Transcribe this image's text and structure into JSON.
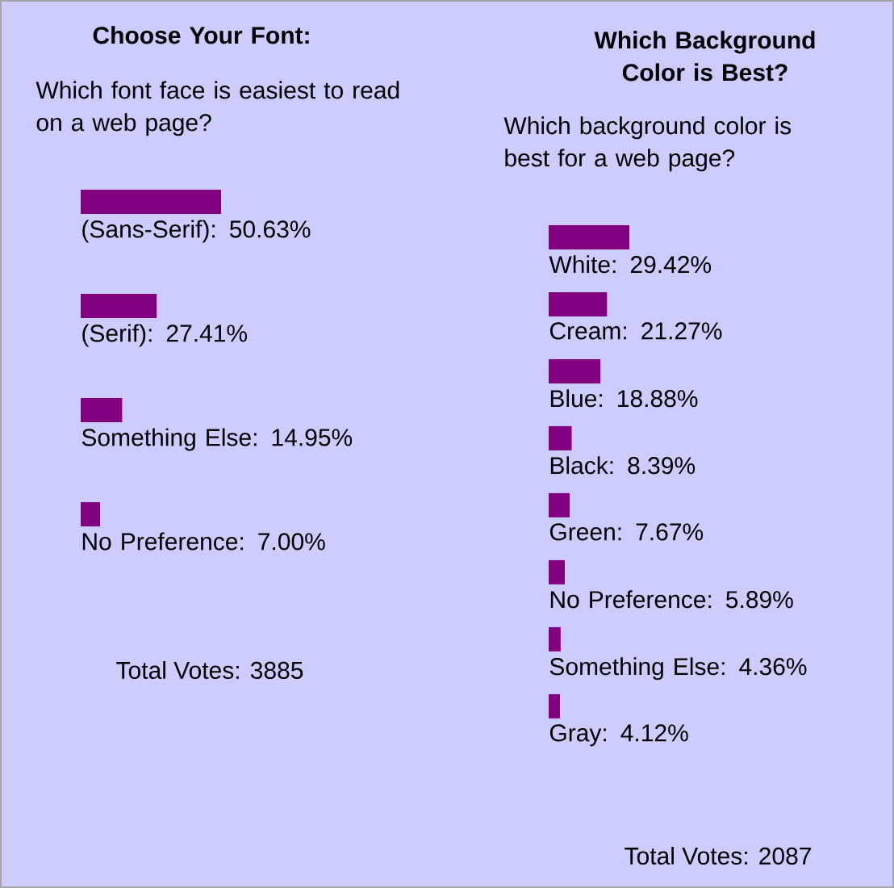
{
  "chart_data": [
    {
      "type": "bar",
      "orientation": "horizontal",
      "title": "Choose Your Font:",
      "subtitle": "Which font face is easiest to read on a web page?",
      "categories": [
        null,
        null,
        null,
        null
      ],
      "values": [
        50.63,
        27.41,
        14.95,
        7.0
      ],
      "value_labels": [
        "(Sans-Serif): 50.63%",
        "(Serif): 27.41%",
        "Something Else: 14.95%",
        "No Preference: 7.00%"
      ],
      "color": "#800080",
      "tick_labels": false,
      "annotations": [
        "Total Votes: 3885"
      ]
    },
    {
      "type": "bar",
      "orientation": "horizontal",
      "title": "Which Background Color is Best?",
      "subtitle": "Which background color is best for a web page?",
      "categories": [
        null,
        null,
        null,
        null,
        null,
        null,
        null,
        null
      ],
      "values": [
        29.42,
        21.27,
        18.88,
        8.39,
        7.67,
        5.89,
        4.36,
        4.12
      ],
      "value_labels": [
        "White: 29.42%",
        "Cream: 21.27%",
        "Blue: 18.88%",
        "Black: 8.39%",
        "Green: 7.67%",
        "No Preference: 5.89%",
        "Something Else: 4.36%",
        "Gray: 4.12%"
      ],
      "color": "#800080",
      "tick_labels": false,
      "annotations": [
        "Total Votes: 2087"
      ]
    }
  ]
}
